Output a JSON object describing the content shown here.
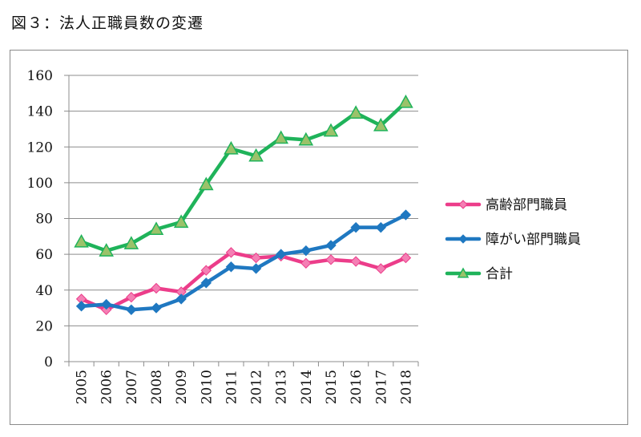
{
  "caption": "図３：法人正職員数の変遷",
  "chart_data": {
    "type": "line",
    "title": "",
    "xlabel": "",
    "ylabel": "",
    "ylim": [
      0,
      160
    ],
    "yticks": [
      0,
      20,
      40,
      60,
      80,
      100,
      120,
      140,
      160
    ],
    "categories": [
      "2005",
      "2006",
      "2007",
      "2008",
      "2009",
      "2010",
      "2011",
      "2012",
      "2013",
      "2014",
      "2015",
      "2016",
      "2017",
      "2018"
    ],
    "grid": "horizontal",
    "legend_position": "right",
    "series": [
      {
        "name": "高齢部門職員",
        "color": "#ec3d8a",
        "marker": "diamond",
        "values": [
          35,
          29,
          36,
          41,
          39,
          51,
          61,
          58,
          59,
          55,
          57,
          56,
          52,
          58
        ]
      },
      {
        "name": "障がい部門職員",
        "color": "#1f78c1",
        "marker": "diamond",
        "values": [
          31,
          32,
          29,
          30,
          35,
          44,
          53,
          52,
          60,
          62,
          65,
          75,
          75,
          82
        ]
      },
      {
        "name": "合計",
        "color": "#1fb35a",
        "marker": "triangle",
        "values": [
          67,
          62,
          66,
          74,
          78,
          99,
          119,
          115,
          125,
          124,
          129,
          139,
          132,
          145
        ]
      }
    ]
  }
}
